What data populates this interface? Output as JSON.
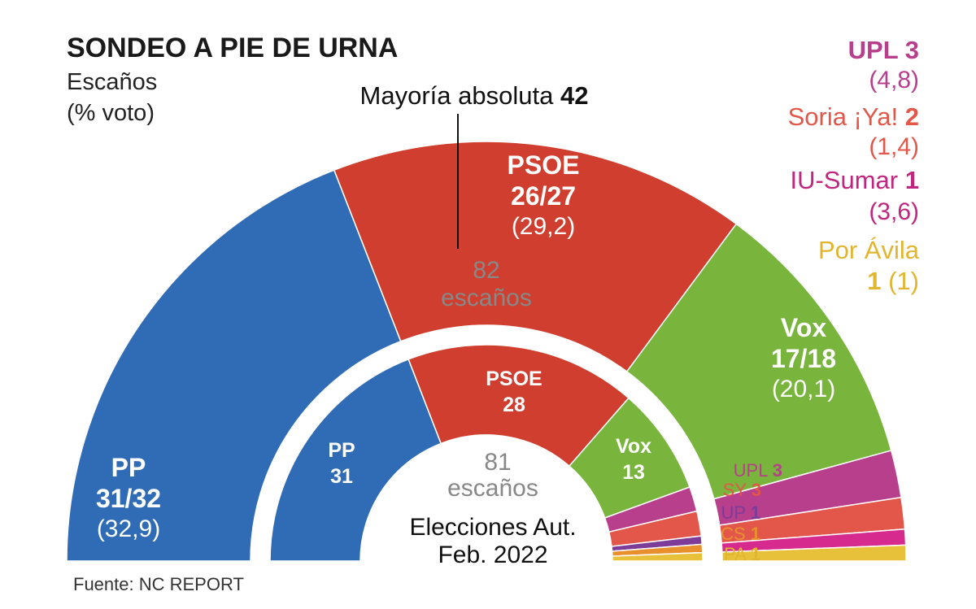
{
  "chart_data": {
    "type": "hemicycle",
    "title": "SONDEO A PIE DE URNA",
    "subtitle_line1": "Escaños",
    "subtitle_line2": "(% voto)",
    "majority_text": "Mayoría absoluta",
    "majority_value": "42",
    "source": "Fuente: NC REPORT",
    "outer": {
      "total_label": "82",
      "total_sub": "escaños",
      "total": 82,
      "parties": [
        {
          "name": "PP",
          "seats_label": "31/32",
          "vote_label": "(32,9)",
          "seats": 31.5,
          "color": "#2f6cb5"
        },
        {
          "name": "PSOE",
          "seats_label": "26/27",
          "vote_label": "(29,2)",
          "seats": 26.5,
          "color": "#cf3e2e"
        },
        {
          "name": "Vox",
          "seats_label": "17/18",
          "vote_label": "(20,1)",
          "seats": 17.5,
          "color": "#79b53d"
        },
        {
          "name": "UPL",
          "seats_label": "3",
          "vote_label": "(4,8)",
          "seats": 3,
          "color": "#b73f8c"
        },
        {
          "name": "Soria ¡Ya!",
          "seats_label": "2",
          "vote_label": "(1,4)",
          "seats": 2,
          "color": "#e2574a"
        },
        {
          "name": "IU-Sumar",
          "seats_label": "1",
          "vote_label": "(3,6)",
          "seats": 1,
          "color": "#d62a8f"
        },
        {
          "name": "Por Ávila",
          "seats_label": "1",
          "vote_label": "(1)",
          "seats": 1,
          "color": "#e8c13a"
        }
      ]
    },
    "inner": {
      "total_label": "81",
      "total_sub": "escaños",
      "caption1": "Elecciones Aut.",
      "caption2": "Feb. 2022",
      "total": 81,
      "parties": [
        {
          "name": "PP",
          "seats_label": "31",
          "seats": 31,
          "color": "#2f6cb5"
        },
        {
          "name": "PSOE",
          "seats_label": "28",
          "seats": 28,
          "color": "#cf3e2e"
        },
        {
          "name": "Vox",
          "seats_label": "13",
          "seats": 13,
          "color": "#79b53d"
        },
        {
          "name": "UPL",
          "seats_label": "3",
          "seats": 3,
          "color": "#b73f8c"
        },
        {
          "name": "SY",
          "seats_label": "3",
          "seats": 3,
          "color": "#e2574a"
        },
        {
          "name": "UP",
          "seats_label": "1",
          "seats": 1,
          "color": "#7d3c98"
        },
        {
          "name": "CS",
          "seats_label": "1",
          "seats": 1,
          "color": "#e8902e"
        },
        {
          "name": "PA",
          "seats_label": "1",
          "seats": 1,
          "color": "#e8c13a"
        }
      ]
    }
  }
}
